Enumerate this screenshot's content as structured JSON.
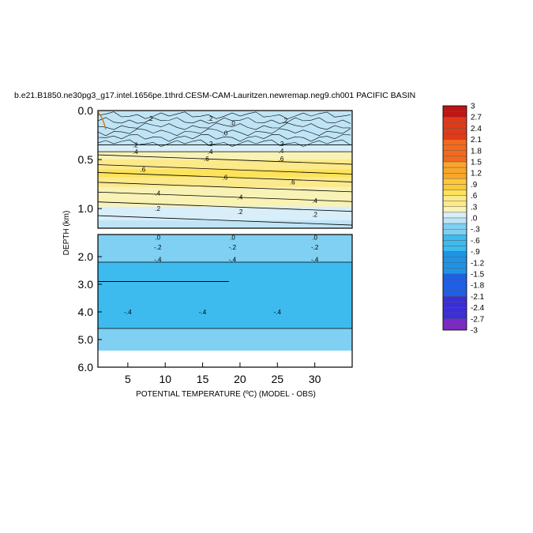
{
  "chart_data": {
    "type": "contour",
    "title": "b.e21.B1850.ne30pg3_g17.intel.1656pe.1thrd.CESM-CAM-Lauritzen.newremap.neg9.ch001 PACIFIC BASIN",
    "xlabel": "POTENTIAL TEMPERATURE (ºC) (MODEL - OBS)",
    "ylabel": "DEPTH (km)",
    "xlim": [
      1,
      35
    ],
    "x_ticks": [
      "5",
      "10",
      "15",
      "20",
      "25",
      "30"
    ],
    "x_tick_values": [
      5,
      10,
      15,
      20,
      25,
      30
    ],
    "upper_panel": {
      "ylim": [
        0,
        1.2
      ],
      "y_ticks": [
        "0.0",
        "0.5",
        "1.0"
      ],
      "y_tick_values": [
        0,
        0.5,
        1.0
      ],
      "shading_bands": [
        {
          "from": 0.0,
          "to": 0.35,
          "level": 0.0
        },
        {
          "from": 0.35,
          "to": 0.42,
          "level": 0.2
        },
        {
          "from": 0.42,
          "to": 0.5,
          "level": 0.3
        },
        {
          "from": 0.5,
          "to": 0.6,
          "level": 0.45
        },
        {
          "from": 0.6,
          "to": 0.68,
          "level": 0.55
        },
        {
          "from": 0.68,
          "to": 0.78,
          "level": 0.45
        },
        {
          "from": 0.78,
          "to": 0.88,
          "level": 0.35
        },
        {
          "from": 0.88,
          "to": 0.98,
          "level": 0.3
        },
        {
          "from": 0.98,
          "to": 1.12,
          "level": 0.15
        },
        {
          "from": 1.12,
          "to": 1.2,
          "level": -0.1
        }
      ],
      "contour_labels": [
        {
          "x": 8,
          "y": 0.08,
          "text": ".2"
        },
        {
          "x": 16,
          "y": 0.08,
          "text": ".2"
        },
        {
          "x": 19,
          "y": 0.13,
          "text": ".0"
        },
        {
          "x": 18,
          "y": 0.23,
          "text": ".0"
        },
        {
          "x": 26,
          "y": 0.1,
          "text": ".2"
        },
        {
          "x": 6,
          "y": 0.35,
          "text": ".2"
        },
        {
          "x": 6,
          "y": 0.42,
          "text": ".4"
        },
        {
          "x": 16,
          "y": 0.34,
          "text": ".2"
        },
        {
          "x": 16,
          "y": 0.42,
          "text": ".4"
        },
        {
          "x": 25.5,
          "y": 0.34,
          "text": ".2"
        },
        {
          "x": 25.5,
          "y": 0.41,
          "text": ".4"
        },
        {
          "x": 15.5,
          "y": 0.49,
          "text": ".6"
        },
        {
          "x": 25.5,
          "y": 0.49,
          "text": ".6"
        },
        {
          "x": 7,
          "y": 0.6,
          "text": ".6"
        },
        {
          "x": 18,
          "y": 0.68,
          "text": ".6"
        },
        {
          "x": 27,
          "y": 0.73,
          "text": ".6"
        },
        {
          "x": 9,
          "y": 0.84,
          "text": ".4"
        },
        {
          "x": 20,
          "y": 0.88,
          "text": ".4"
        },
        {
          "x": 30,
          "y": 0.92,
          "text": ".4"
        },
        {
          "x": 9,
          "y": 1.0,
          "text": ".2"
        },
        {
          "x": 20,
          "y": 1.03,
          "text": ".2"
        },
        {
          "x": 30,
          "y": 1.06,
          "text": ".2"
        }
      ]
    },
    "lower_panel": {
      "ylim": [
        1.2,
        6.0
      ],
      "y_ticks": [
        "2.0",
        "3.0",
        "4.0",
        "5.0",
        "6.0"
      ],
      "y_tick_values": [
        2,
        3,
        4,
        5,
        6
      ],
      "shading_bands": [
        {
          "from": 1.2,
          "to": 2.2,
          "level": -0.25
        },
        {
          "from": 2.2,
          "to": 4.6,
          "level": -0.45
        },
        {
          "from": 4.6,
          "to": 5.4,
          "level": -0.3
        }
      ],
      "contour_labels": [
        {
          "x": 9,
          "y": 1.3,
          "text": ".0"
        },
        {
          "x": 19,
          "y": 1.3,
          "text": ".0"
        },
        {
          "x": 30,
          "y": 1.3,
          "text": ".0"
        },
        {
          "x": 9,
          "y": 1.65,
          "text": "-.2"
        },
        {
          "x": 19,
          "y": 1.65,
          "text": "-.2"
        },
        {
          "x": 30,
          "y": 1.65,
          "text": "-.2"
        },
        {
          "x": 9,
          "y": 2.1,
          "text": "-.4"
        },
        {
          "x": 19,
          "y": 2.1,
          "text": "-.4"
        },
        {
          "x": 30,
          "y": 2.1,
          "text": "-.4"
        },
        {
          "x": 5,
          "y": 4.0,
          "text": "-.4"
        },
        {
          "x": 15,
          "y": 4.0,
          "text": "-.4"
        },
        {
          "x": 25,
          "y": 4.0,
          "text": "-.4"
        }
      ]
    },
    "colorbar": {
      "labels": [
        "3",
        "2.7",
        "2.4",
        "2.1",
        "1.8",
        "1.5",
        "1.2",
        ".9",
        ".6",
        ".3",
        ".0",
        "-.3",
        "-.6",
        "-.9",
        "-1.2",
        "-1.5",
        "-1.8",
        "-2.1",
        "-2.4",
        "-2.7",
        "-3"
      ],
      "values": [
        3,
        2.7,
        2.4,
        2.1,
        1.8,
        1.5,
        1.2,
        0.9,
        0.6,
        0.3,
        0.0,
        -0.3,
        -0.6,
        -0.9,
        -1.2,
        -1.5,
        -1.8,
        -2.1,
        -2.4,
        -2.7,
        -3
      ]
    }
  }
}
